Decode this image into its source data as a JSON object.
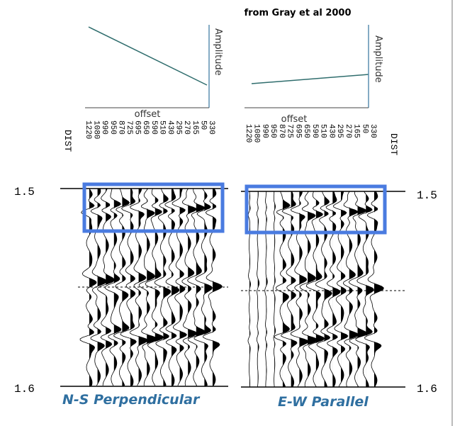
{
  "header": {
    "title": "from Gray et al 2000"
  },
  "panels": [
    {
      "amplitude_label": "Amplitude",
      "offset_label": "offset",
      "dist_label": "DIST",
      "offsets": [
        "1220",
        "1080",
        "990",
        "950",
        "870",
        "725",
        "695",
        "650",
        "590",
        "510",
        "430",
        "295",
        "270",
        "165",
        "50",
        "330"
      ],
      "time_labels": [
        "1.5",
        "1.6"
      ],
      "caption": "N-S Perpendicular"
    },
    {
      "amplitude_label": "Amplitude",
      "offset_label": "offset",
      "dist_label": "DIST",
      "offsets": [
        "1220",
        "1080",
        "990",
        "950",
        "870",
        "725",
        "695",
        "650",
        "590",
        "510",
        "430",
        "295",
        "270",
        "165",
        "50",
        "330"
      ],
      "time_labels": [
        "1.5",
        "1.6"
      ],
      "caption": "E-W Parallel"
    }
  ]
}
